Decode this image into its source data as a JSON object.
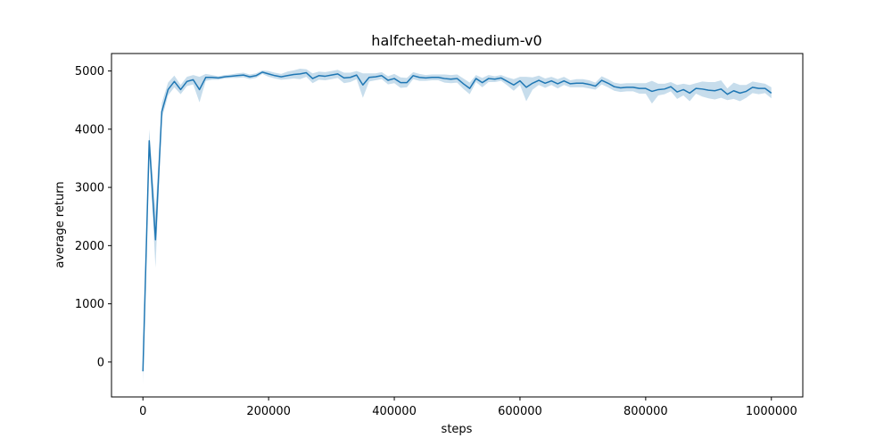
{
  "chart_data": {
    "type": "line",
    "title": "halfcheetah-medium-v0",
    "xlabel": "steps",
    "ylabel": "average return",
    "xlim": [
      -50000,
      1050000
    ],
    "ylim": [
      -600,
      5300
    ],
    "xticks": [
      0,
      200000,
      400000,
      600000,
      800000,
      1000000
    ],
    "xtick_labels": [
      "0",
      "200000",
      "400000",
      "600000",
      "800000",
      "1000000"
    ],
    "yticks": [
      0,
      1000,
      2000,
      3000,
      4000,
      5000
    ],
    "ytick_labels": [
      "0",
      "1000",
      "2000",
      "3000",
      "4000",
      "5000"
    ],
    "grid": false,
    "colors": {
      "line": "#1f77b4",
      "band": "#1f77b4"
    },
    "series": [
      {
        "x": [
          0,
          10000,
          20000,
          30000,
          40000,
          50000,
          60000,
          70000,
          80000,
          90000,
          100000,
          110000,
          120000,
          130000,
          140000,
          150000,
          160000,
          170000,
          180000,
          190000,
          200000,
          210000,
          220000,
          230000,
          240000,
          250000,
          260000,
          270000,
          280000,
          290000,
          300000,
          310000,
          320000,
          330000,
          340000,
          350000,
          360000,
          370000,
          380000,
          390000,
          400000,
          410000,
          420000,
          430000,
          440000,
          450000,
          460000,
          470000,
          480000,
          490000,
          500000,
          510000,
          520000,
          530000,
          540000,
          550000,
          560000,
          570000,
          580000,
          590000,
          600000,
          610000,
          620000,
          630000,
          640000,
          650000,
          660000,
          670000,
          680000,
          690000,
          700000,
          710000,
          720000,
          730000,
          740000,
          750000,
          760000,
          770000,
          780000,
          790000,
          800000,
          810000,
          820000,
          830000,
          840000,
          850000,
          860000,
          870000,
          880000,
          890000,
          900000,
          910000,
          920000,
          930000,
          940000,
          950000,
          960000,
          970000,
          980000,
          990000,
          1000000
        ],
        "values": [
          -160,
          3800,
          2100,
          4300,
          4680,
          4820,
          4680,
          4820,
          4850,
          4680,
          4890,
          4890,
          4880,
          4900,
          4910,
          4920,
          4930,
          4900,
          4920,
          4980,
          4950,
          4920,
          4900,
          4920,
          4940,
          4950,
          4970,
          4870,
          4920,
          4910,
          4930,
          4950,
          4880,
          4890,
          4930,
          4760,
          4890,
          4900,
          4920,
          4840,
          4870,
          4800,
          4800,
          4920,
          4890,
          4880,
          4890,
          4890,
          4870,
          4860,
          4870,
          4780,
          4700,
          4870,
          4800,
          4870,
          4860,
          4880,
          4820,
          4760,
          4830,
          4720,
          4790,
          4840,
          4790,
          4830,
          4780,
          4830,
          4780,
          4790,
          4790,
          4770,
          4740,
          4840,
          4790,
          4730,
          4710,
          4720,
          4720,
          4700,
          4700,
          4650,
          4680,
          4690,
          4730,
          4640,
          4680,
          4620,
          4700,
          4690,
          4670,
          4660,
          4690,
          4600,
          4660,
          4620,
          4650,
          4720,
          4700,
          4700,
          4620
        ],
        "lower": [
          -370,
          3650,
          1620,
          4180,
          4580,
          4720,
          4600,
          4740,
          4770,
          4460,
          4830,
          4850,
          4850,
          4870,
          4880,
          4880,
          4890,
          4860,
          4880,
          4950,
          4900,
          4870,
          4850,
          4860,
          4870,
          4860,
          4900,
          4790,
          4850,
          4840,
          4860,
          4880,
          4790,
          4810,
          4860,
          4540,
          4820,
          4840,
          4860,
          4770,
          4790,
          4710,
          4720,
          4860,
          4830,
          4830,
          4840,
          4840,
          4800,
          4790,
          4800,
          4690,
          4600,
          4810,
          4720,
          4810,
          4810,
          4830,
          4750,
          4660,
          4760,
          4480,
          4680,
          4760,
          4710,
          4760,
          4700,
          4760,
          4720,
          4720,
          4720,
          4700,
          4680,
          4770,
          4720,
          4660,
          4640,
          4650,
          4650,
          4610,
          4610,
          4440,
          4580,
          4600,
          4650,
          4520,
          4580,
          4480,
          4610,
          4560,
          4530,
          4510,
          4540,
          4500,
          4520,
          4480,
          4540,
          4620,
          4600,
          4620,
          4530
        ],
        "upper": [
          80,
          4000,
          2580,
          4450,
          4800,
          4920,
          4760,
          4900,
          4930,
          4900,
          4950,
          4930,
          4910,
          4930,
          4940,
          4960,
          4970,
          4940,
          4960,
          5010,
          5000,
          4970,
          4950,
          4990,
          5010,
          5040,
          5030,
          4960,
          4990,
          4980,
          5000,
          5020,
          4970,
          4970,
          5000,
          4960,
          4960,
          4960,
          4980,
          4910,
          4950,
          4890,
          4880,
          4980,
          4950,
          4930,
          4940,
          4940,
          4940,
          4930,
          4940,
          4870,
          4800,
          4930,
          4880,
          4930,
          4910,
          4930,
          4890,
          4860,
          4900,
          4900,
          4890,
          4920,
          4870,
          4900,
          4860,
          4900,
          4840,
          4860,
          4860,
          4840,
          4800,
          4910,
          4860,
          4800,
          4780,
          4790,
          4790,
          4790,
          4790,
          4830,
          4780,
          4780,
          4810,
          4760,
          4780,
          4760,
          4790,
          4820,
          4810,
          4810,
          4840,
          4700,
          4800,
          4760,
          4760,
          4820,
          4800,
          4780,
          4720
        ]
      }
    ]
  }
}
